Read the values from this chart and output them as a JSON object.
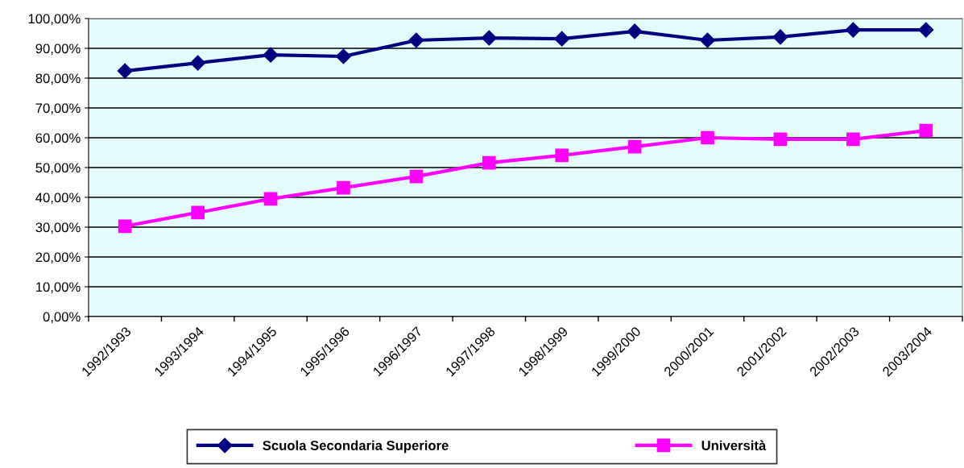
{
  "chart_data": {
    "type": "line",
    "categories": [
      "1992/1993",
      "1993/1994",
      "1994/1995",
      "1995/1996",
      "1996/1997",
      "1997/1998",
      "1998/1999",
      "1999/2000",
      "2000/2001",
      "2001/2002",
      "2002/2003",
      "2003/2004"
    ],
    "series": [
      {
        "name": "Scuola Secondaria Superiore",
        "color": "#000080",
        "marker": "diamond",
        "values": [
          82.4,
          85.1,
          87.8,
          87.3,
          92.7,
          93.5,
          93.2,
          95.7,
          92.7,
          93.8,
          96.2,
          96.2
        ]
      },
      {
        "name": "Università",
        "color": "#ff00ff",
        "marker": "square",
        "values": [
          30.3,
          34.9,
          39.5,
          43.2,
          47.0,
          51.6,
          54.1,
          57.0,
          60.0,
          59.5,
          59.5,
          62.4
        ]
      }
    ],
    "ylim": [
      0,
      100
    ],
    "yticks": [
      {
        "value": 0,
        "label": "0,00%"
      },
      {
        "value": 10,
        "label": "10,00%"
      },
      {
        "value": 20,
        "label": "20,00%"
      },
      {
        "value": 30,
        "label": "30,00%"
      },
      {
        "value": 40,
        "label": "40,00%"
      },
      {
        "value": 50,
        "label": "50,00%"
      },
      {
        "value": 60,
        "label": "60,00%"
      },
      {
        "value": 70,
        "label": "70,00%"
      },
      {
        "value": 80,
        "label": "80,00%"
      },
      {
        "value": 90,
        "label": "90,00%"
      },
      {
        "value": 100,
        "label": "100,00%"
      }
    ],
    "grid": "y",
    "legend": "bottom",
    "line_style": "solid"
  }
}
